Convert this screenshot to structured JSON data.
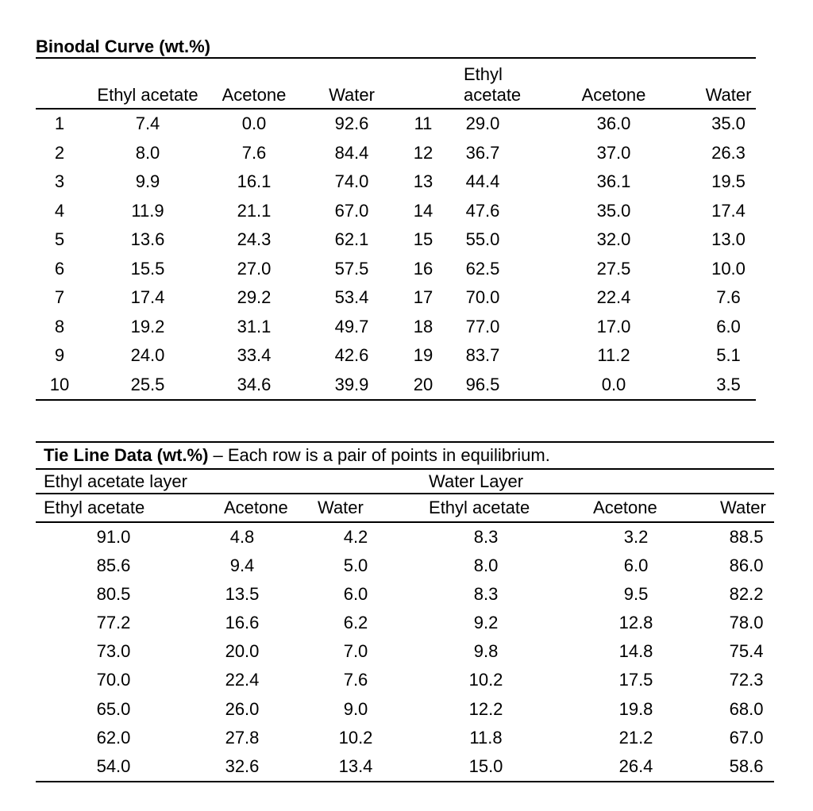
{
  "page": {
    "background": "#ffffff",
    "text_color": "#000000",
    "rule_color": "#000000"
  },
  "binodal": {
    "title": "Binodal Curve (wt.%)",
    "unit": "wt.%",
    "columns": [
      "",
      "Ethyl acetate",
      "Acetone",
      "Water",
      "",
      "Ethyl acetate",
      "Acetone",
      "Water"
    ],
    "rows": [
      [
        "1",
        "7.4",
        "0.0",
        "92.6",
        "11",
        "29.0",
        "36.0",
        "35.0"
      ],
      [
        "2",
        "8.0",
        "7.6",
        "84.4",
        "12",
        "36.7",
        "37.0",
        "26.3"
      ],
      [
        "3",
        "9.9",
        "16.1",
        "74.0",
        "13",
        "44.4",
        "36.1",
        "19.5"
      ],
      [
        "4",
        "11.9",
        "21.1",
        "67.0",
        "14",
        "47.6",
        "35.0",
        "17.4"
      ],
      [
        "5",
        "13.6",
        "24.3",
        "62.1",
        "15",
        "55.0",
        "32.0",
        "13.0"
      ],
      [
        "6",
        "15.5",
        "27.0",
        "57.5",
        "16",
        "62.5",
        "27.5",
        "10.0"
      ],
      [
        "7",
        "17.4",
        "29.2",
        "53.4",
        "17",
        "70.0",
        "22.4",
        "7.6"
      ],
      [
        "8",
        "19.2",
        "31.1",
        "49.7",
        "18",
        "77.0",
        "17.0",
        "6.0"
      ],
      [
        "9",
        "24.0",
        "33.4",
        "42.6",
        "19",
        "83.7",
        "11.2",
        "5.1"
      ],
      [
        "10",
        "25.5",
        "34.6",
        "39.9",
        "20",
        "96.5",
        "0.0",
        "3.5"
      ]
    ]
  },
  "tie_line": {
    "title_bold": "Tie Line Data (wt.%)",
    "title_rest": "– Each row is a pair of points in equilibrium.",
    "layers": [
      "Ethyl acetate layer",
      "Water Layer"
    ],
    "columns": [
      "Ethyl acetate",
      "Acetone",
      "Water",
      "Ethyl acetate",
      "Acetone",
      "Water"
    ],
    "rows": [
      [
        "91.0",
        "4.8",
        "4.2",
        "8.3",
        "3.2",
        "88.5"
      ],
      [
        "85.6",
        "9.4",
        "5.0",
        "8.0",
        "6.0",
        "86.0"
      ],
      [
        "80.5",
        "13.5",
        "6.0",
        "8.3",
        "9.5",
        "82.2"
      ],
      [
        "77.2",
        "16.6",
        "6.2",
        "9.2",
        "12.8",
        "78.0"
      ],
      [
        "73.0",
        "20.0",
        "7.0",
        "9.8",
        "14.8",
        "75.4"
      ],
      [
        "70.0",
        "22.4",
        "7.6",
        "10.2",
        "17.5",
        "72.3"
      ],
      [
        "65.0",
        "26.0",
        "9.0",
        "12.2",
        "19.8",
        "68.0"
      ],
      [
        "62.0",
        "27.8",
        "10.2",
        "11.8",
        "21.2",
        "67.0"
      ],
      [
        "54.0",
        "32.6",
        "13.4",
        "15.0",
        "26.4",
        "58.6"
      ]
    ]
  }
}
